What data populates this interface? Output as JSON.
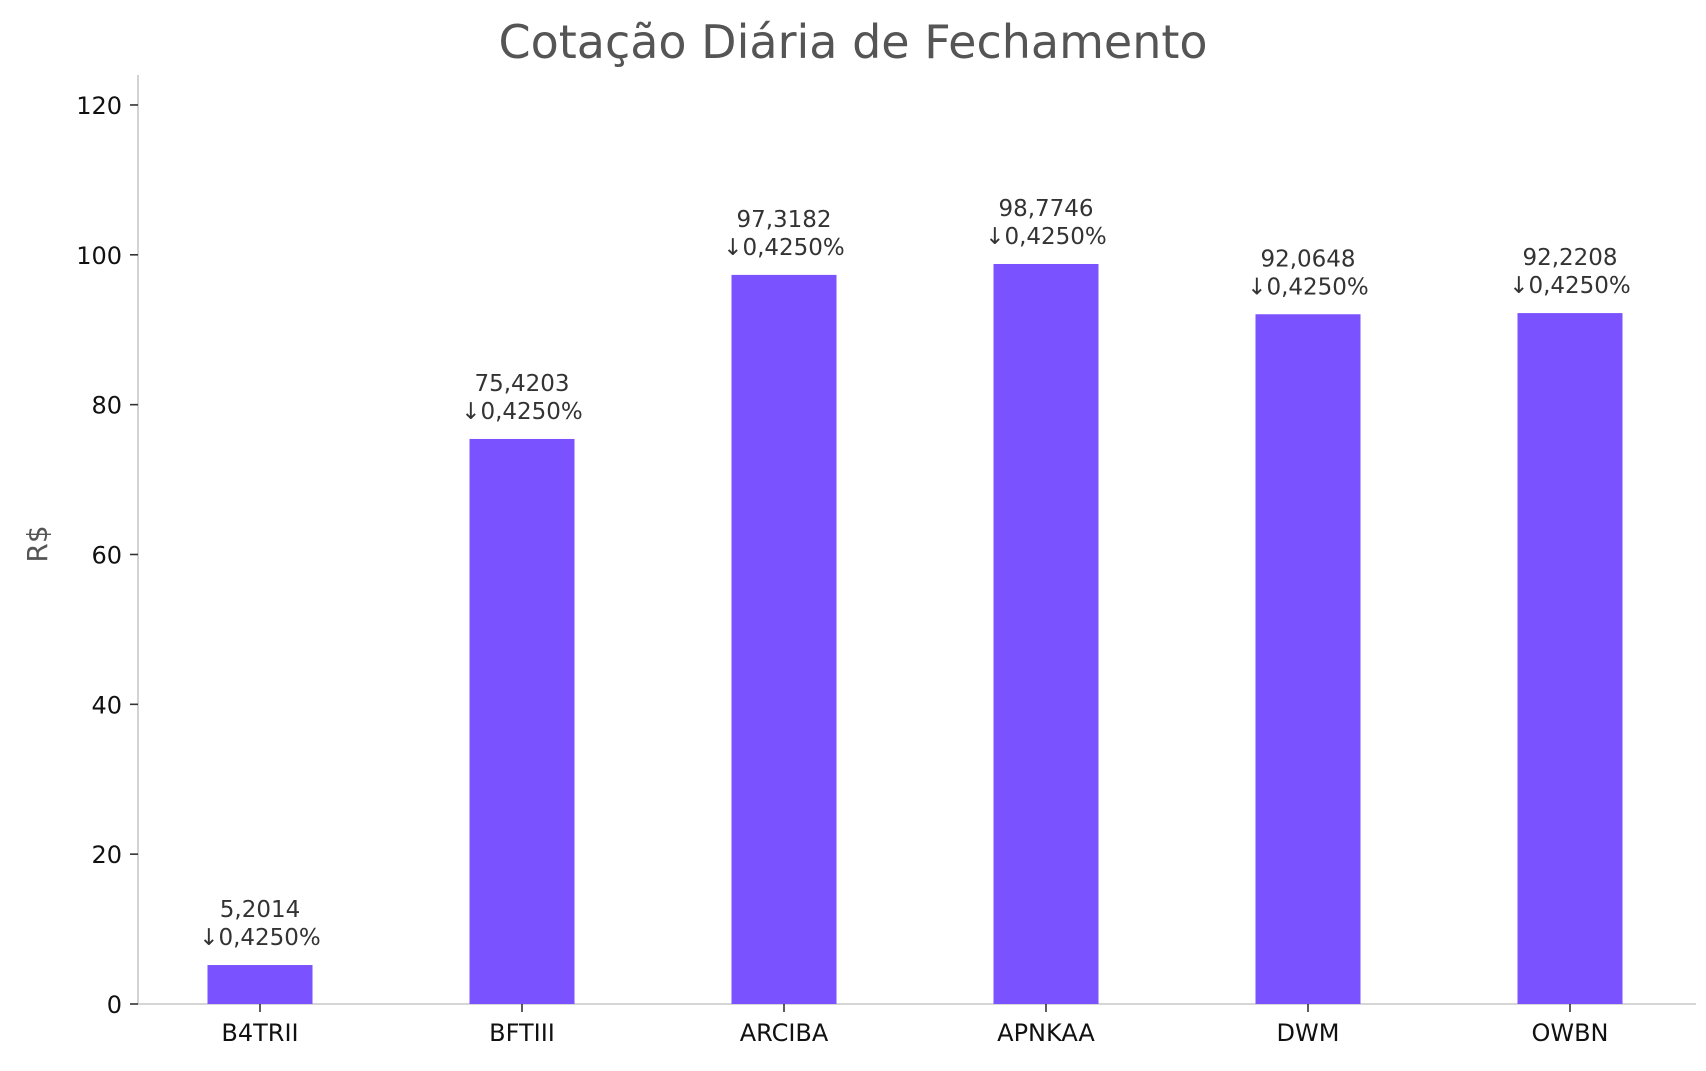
{
  "chart_data": {
    "type": "bar",
    "title": "Cotação Diária de Fechamento",
    "xlabel": "",
    "ylabel": "R$",
    "ylim": [
      0,
      124
    ],
    "yticks": [
      0,
      20,
      40,
      60,
      80,
      100,
      120
    ],
    "categories": [
      "B4TRII",
      "BFTIII",
      "ARCIBA",
      "APNKAA",
      "DWM",
      "OWBN"
    ],
    "values": [
      5.2014,
      75.4203,
      97.3182,
      98.7746,
      92.0648,
      92.2208
    ],
    "value_labels": [
      "5,2014",
      "75,4203",
      "97,3182",
      "98,7746",
      "92,0648",
      "92,2208"
    ],
    "change_labels": [
      "↓0,4250%",
      "↓0,4250%",
      "↓0,4250%",
      "↓0,4250%",
      "↓0,4250%",
      "↓0,4250%"
    ],
    "bar_color": "#7b52ff",
    "grid": false,
    "legend": null
  }
}
